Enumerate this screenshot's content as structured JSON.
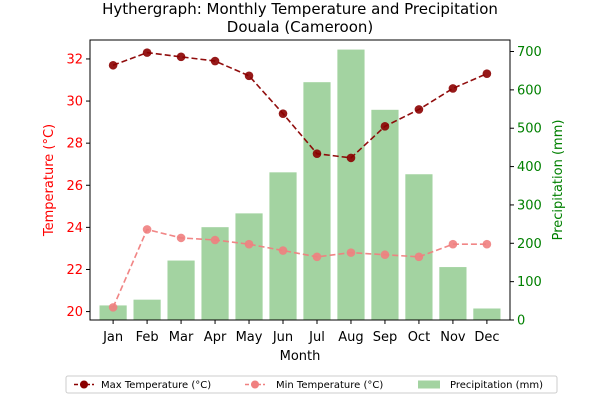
{
  "chart_data": {
    "type": "bar+line",
    "title_line1": "Hythergraph: Monthly Temperature and Precipitation",
    "title_line2": "Douala (Cameroon)",
    "xlabel": "Month",
    "ylabel_left": "Temperature (°C)",
    "ylabel_right": "Precipitation (mm)",
    "categories": [
      "Jan",
      "Feb",
      "Mar",
      "Apr",
      "May",
      "Jun",
      "Jul",
      "Aug",
      "Sep",
      "Oct",
      "Nov",
      "Dec"
    ],
    "ylim_left": [
      19.6,
      32.9
    ],
    "ylim_right": [
      0,
      730
    ],
    "yticks_left": [
      20,
      22,
      24,
      26,
      28,
      30,
      32
    ],
    "yticks_right": [
      0,
      100,
      200,
      300,
      400,
      500,
      600,
      700
    ],
    "series": [
      {
        "name": "Max Temperature (°C)",
        "kind": "line",
        "axis": "left",
        "color": "#8b0000",
        "values": [
          31.7,
          32.3,
          32.1,
          31.9,
          31.2,
          29.4,
          27.5,
          27.3,
          28.8,
          29.6,
          30.6,
          31.3
        ]
      },
      {
        "name": "Min Temperature (°C)",
        "kind": "line",
        "axis": "left",
        "color": "#f08080",
        "values": [
          20.2,
          23.9,
          23.5,
          23.4,
          23.2,
          22.9,
          22.6,
          22.8,
          22.7,
          22.6,
          23.2,
          23.2
        ]
      },
      {
        "name": "Precipitation (mm)",
        "kind": "bar",
        "axis": "right",
        "color": "#a3d3a1",
        "values": [
          38,
          53,
          155,
          242,
          278,
          385,
          620,
          705,
          548,
          380,
          138,
          30
        ]
      }
    ],
    "legend_position": "bottom-center",
    "grid": false
  }
}
